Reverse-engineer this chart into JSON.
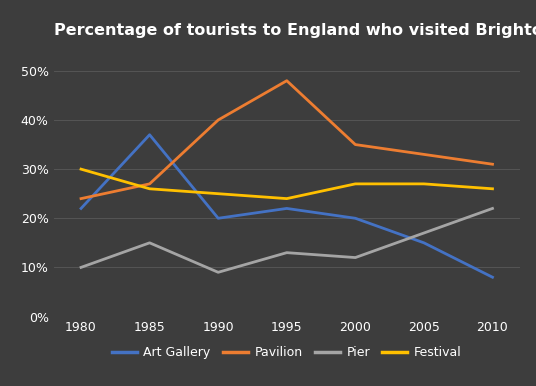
{
  "title": "Percentage of tourists to England who visited Brighton attractions",
  "years": [
    1980,
    1985,
    1990,
    1995,
    2000,
    2005,
    2010
  ],
  "series": {
    "Art Gallery": {
      "values": [
        22,
        37,
        20,
        22,
        20,
        15,
        8
      ],
      "color": "#4472C4"
    },
    "Pavilion": {
      "values": [
        24,
        27,
        40,
        48,
        35,
        33,
        31
      ],
      "color": "#ED7D31"
    },
    "Pier": {
      "values": [
        10,
        15,
        9,
        13,
        12,
        17,
        22
      ],
      "color": "#A5A5A5"
    },
    "Festival": {
      "values": [
        30,
        26,
        25,
        24,
        27,
        27,
        26
      ],
      "color": "#FFC000"
    }
  },
  "ylim": [
    0,
    55
  ],
  "yticks": [
    0,
    10,
    20,
    30,
    40,
    50
  ],
  "ytick_labels": [
    "0%",
    "10%",
    "20%",
    "30%",
    "40%",
    "50%"
  ],
  "xlim": [
    1978,
    2012
  ],
  "background_color": "#3d3d3d",
  "grid_color": "#555555",
  "text_color": "#ffffff",
  "title_fontsize": 11.5,
  "legend_fontsize": 9,
  "tick_fontsize": 9,
  "line_width": 2.0
}
